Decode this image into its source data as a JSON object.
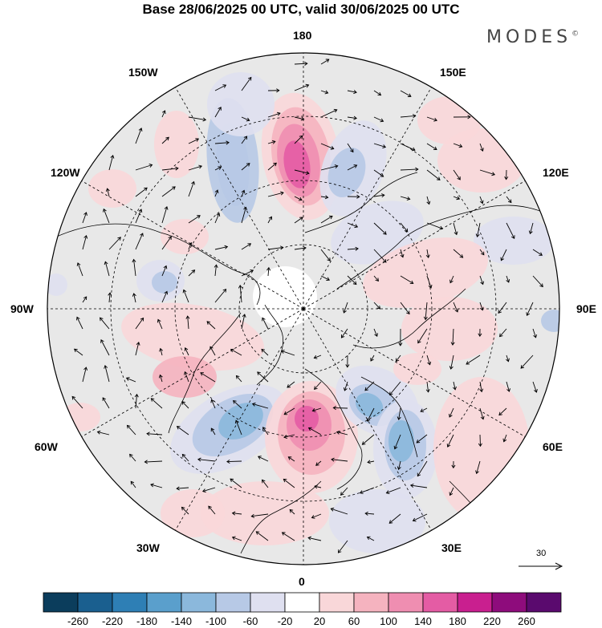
{
  "title": "Base 28/06/2025 00 UTC, valid 30/06/2025 00 UTC",
  "brand": "MODES",
  "brand_mark": "©",
  "longitude_labels": {
    "l180": "180",
    "l150w": "150W",
    "l150e": "150E",
    "l120w": "120W",
    "l120e": "120E",
    "l90w": "90W",
    "l90e": "90E",
    "l60w": "60W",
    "l60e": "60E",
    "l30w": "30W",
    "l30e": "30E",
    "l0": "0"
  },
  "reference_vector": "30",
  "colorbar": {
    "colors": [
      "#0b3d5c",
      "#1a5f8f",
      "#2e7fb5",
      "#5a9fcc",
      "#8bb8dc",
      "#b7c9e6",
      "#dfe0f0",
      "#ffffff",
      "#f9d7d9",
      "#f5b3bf",
      "#ef8eb1",
      "#e45ca4",
      "#c91f8f",
      "#8e0c7c",
      "#5a0a6e"
    ],
    "labels": [
      "-260",
      "-220",
      "-180",
      "-140",
      "-100",
      "-60",
      "-20",
      "20",
      "60",
      "100",
      "140",
      "180",
      "220",
      "260"
    ]
  },
  "colors": {
    "land": "#e8e8e8",
    "ocean": "#e8e8e8",
    "coast": "#000000"
  }
}
